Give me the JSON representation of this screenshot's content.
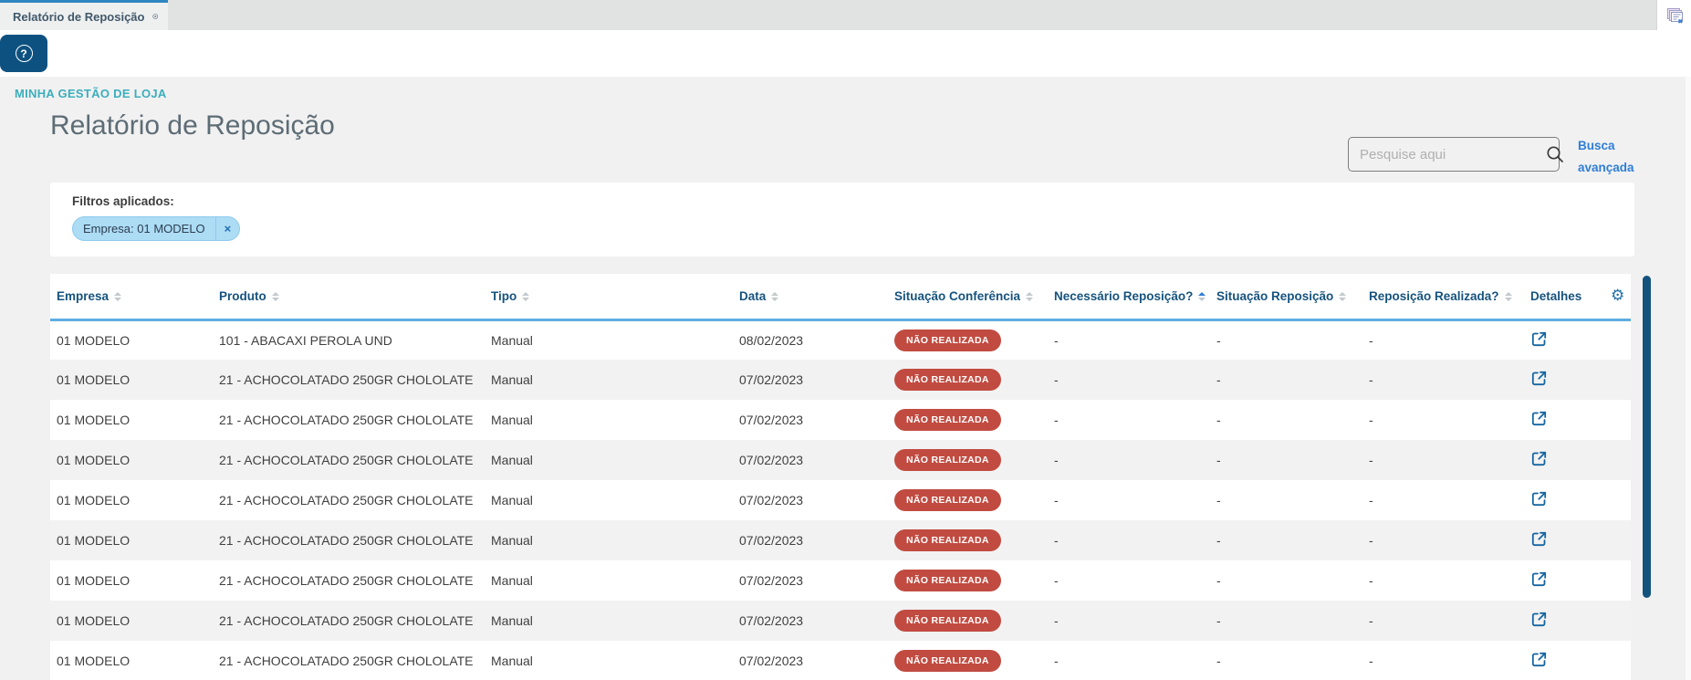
{
  "colors": {
    "accent_blue": "#2e86c1",
    "header_blue": "#16537e",
    "link_blue": "#2f7ed8",
    "badge_red": "#c14b41",
    "chip_bg": "#addcf5",
    "breadcrumb_teal": "#3caebc",
    "scrollbar_blue": "#14527e"
  },
  "tab_bar": {
    "active_tab": "Relatório de Reposição"
  },
  "header": {
    "breadcrumb": "MINHA GESTÃO DE LOJA"
  },
  "page": {
    "title": "Relatório de Reposição"
  },
  "search": {
    "placeholder": "Pesquise aqui",
    "advanced_label": "Busca avançada"
  },
  "filters": {
    "label": "Filtros aplicados:",
    "chips": [
      {
        "text": "Empresa: 01 MODELO",
        "close_symbol": "×"
      }
    ]
  },
  "table": {
    "columns": [
      {
        "key": "empresa",
        "label": "Empresa",
        "sortable": true,
        "sort": "none"
      },
      {
        "key": "produto",
        "label": "Produto",
        "sortable": true,
        "sort": "none"
      },
      {
        "key": "tipo",
        "label": "Tipo",
        "sortable": true,
        "sort": "none"
      },
      {
        "key": "data",
        "label": "Data",
        "sortable": true,
        "sort": "none"
      },
      {
        "key": "situacao_conferencia",
        "label": "Situação Conferência",
        "sortable": true,
        "sort": "none"
      },
      {
        "key": "necessario_reposicao",
        "label": "Necessário Reposição?",
        "sortable": true,
        "sort": "asc"
      },
      {
        "key": "situacao_reposicao",
        "label": "Situação Reposição",
        "sortable": true,
        "sort": "none"
      },
      {
        "key": "reposicao_realizada",
        "label": "Reposição Realizada?",
        "sortable": true,
        "sort": "none"
      },
      {
        "key": "detalhes",
        "label": "Detalhes",
        "sortable": false,
        "sort": "none"
      }
    ],
    "rows": [
      {
        "empresa": "01 MODELO",
        "produto": "101 - ABACAXI PEROLA UND",
        "tipo": "Manual",
        "data": "08/02/2023",
        "situacao_conferencia": "NÃO REALIZADA",
        "necessario_reposicao": "-",
        "situacao_reposicao": "-",
        "reposicao_realizada": "-"
      },
      {
        "empresa": "01 MODELO",
        "produto": "21 - ACHOCOLATADO 250GR CHOLOLATE",
        "tipo": "Manual",
        "data": "07/02/2023",
        "situacao_conferencia": "NÃO REALIZADA",
        "necessario_reposicao": "-",
        "situacao_reposicao": "-",
        "reposicao_realizada": "-"
      },
      {
        "empresa": "01 MODELO",
        "produto": "21 - ACHOCOLATADO 250GR CHOLOLATE",
        "tipo": "Manual",
        "data": "07/02/2023",
        "situacao_conferencia": "NÃO REALIZADA",
        "necessario_reposicao": "-",
        "situacao_reposicao": "-",
        "reposicao_realizada": "-"
      },
      {
        "empresa": "01 MODELO",
        "produto": "21 - ACHOCOLATADO 250GR CHOLOLATE",
        "tipo": "Manual",
        "data": "07/02/2023",
        "situacao_conferencia": "NÃO REALIZADA",
        "necessario_reposicao": "-",
        "situacao_reposicao": "-",
        "reposicao_realizada": "-"
      },
      {
        "empresa": "01 MODELO",
        "produto": "21 - ACHOCOLATADO 250GR CHOLOLATE",
        "tipo": "Manual",
        "data": "07/02/2023",
        "situacao_conferencia": "NÃO REALIZADA",
        "necessario_reposicao": "-",
        "situacao_reposicao": "-",
        "reposicao_realizada": "-"
      },
      {
        "empresa": "01 MODELO",
        "produto": "21 - ACHOCOLATADO 250GR CHOLOLATE",
        "tipo": "Manual",
        "data": "07/02/2023",
        "situacao_conferencia": "NÃO REALIZADA",
        "necessario_reposicao": "-",
        "situacao_reposicao": "-",
        "reposicao_realizada": "-"
      },
      {
        "empresa": "01 MODELO",
        "produto": "21 - ACHOCOLATADO 250GR CHOLOLATE",
        "tipo": "Manual",
        "data": "07/02/2023",
        "situacao_conferencia": "NÃO REALIZADA",
        "necessario_reposicao": "-",
        "situacao_reposicao": "-",
        "reposicao_realizada": "-"
      },
      {
        "empresa": "01 MODELO",
        "produto": "21 - ACHOCOLATADO 250GR CHOLOLATE",
        "tipo": "Manual",
        "data": "07/02/2023",
        "situacao_conferencia": "NÃO REALIZADA",
        "necessario_reposicao": "-",
        "situacao_reposicao": "-",
        "reposicao_realizada": "-"
      },
      {
        "empresa": "01 MODELO",
        "produto": "21 - ACHOCOLATADO 250GR CHOLOLATE",
        "tipo": "Manual",
        "data": "07/02/2023",
        "situacao_conferencia": "NÃO REALIZADA",
        "necessario_reposicao": "-",
        "situacao_reposicao": "-",
        "reposicao_realizada": "-"
      }
    ]
  }
}
